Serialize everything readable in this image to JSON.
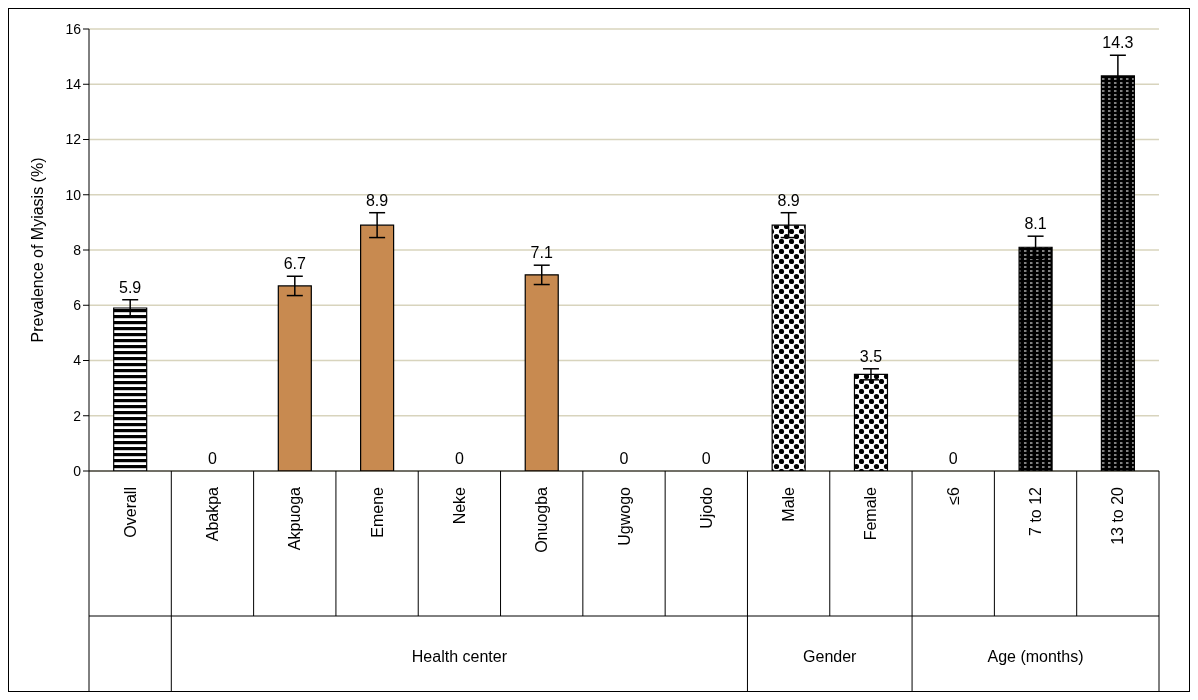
{
  "chart_data": {
    "type": "bar",
    "ylabel": "Prevalence of  Myiasis  (%)",
    "categories": [
      "Overall",
      "Abakpa",
      "Akpuoga",
      "Emene",
      "Neke",
      "Onuogba",
      "Ugwogo",
      "Ujodo",
      "Male",
      "Female",
      "≤6",
      "7 to 12",
      "13 to 20"
    ],
    "values": [
      5.9,
      0,
      6.7,
      8.9,
      0,
      7.1,
      0,
      0,
      8.9,
      3.5,
      0,
      8.1,
      14.3
    ],
    "errors": [
      0.3,
      null,
      0.35,
      0.45,
      null,
      0.35,
      null,
      null,
      0.45,
      0.2,
      null,
      0.4,
      0.75
    ],
    "colors": [
      "#000000",
      "#c88a50",
      "#c88a50",
      "#c88a50",
      "#c88a50",
      "#c88a50",
      "#c88a50",
      "#c88a50",
      "#000000",
      "#000000",
      "#000000",
      "#000000",
      "#000000"
    ],
    "ylim": [
      0,
      16
    ],
    "yticks": [
      0,
      2,
      4,
      6,
      8,
      10,
      12,
      14,
      16
    ],
    "grid": "y",
    "data_labels": true,
    "annotations": [
      "Health center",
      "Gender",
      "Age (months)"
    ]
  }
}
